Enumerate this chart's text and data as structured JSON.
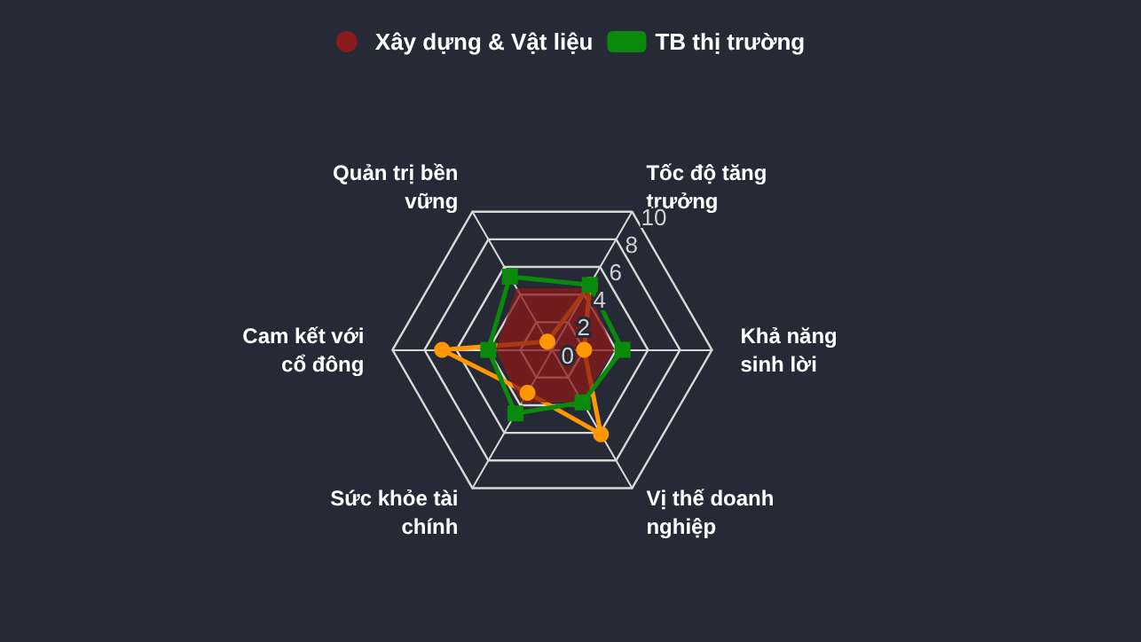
{
  "chart_data": {
    "type": "radar",
    "categories": [
      "Tốc độ tăng trưởng",
      "Khả năng sinh lời",
      "Vị thế doanh nghiệp",
      "Sức khỏe tài chính",
      "Cam kết với cổ đông",
      "Quản trị bền vững"
    ],
    "ylim": [
      0,
      10
    ],
    "yticks": [
      0,
      2,
      4,
      6,
      8,
      10
    ],
    "grid": true,
    "legend": "top",
    "series": [
      {
        "color": "#ff9800",
        "marker": "circle",
        "values": [
          4.7,
          2.0,
          6.1,
          3.1,
          6.9,
          0.6
        ]
      },
      {
        "name": "Xây dựng & Vật liệu",
        "type": "area",
        "color": "#8b1a1a",
        "marker": "none",
        "values": [
          4.4,
          3.8,
          3.7,
          3.8,
          3.5,
          4.4
        ]
      },
      {
        "name": "TB thị trường",
        "color": "#0a8a0a",
        "marker": "square",
        "values": [
          4.7,
          4.4,
          3.8,
          4.6,
          4.0,
          5.3
        ]
      }
    ]
  }
}
